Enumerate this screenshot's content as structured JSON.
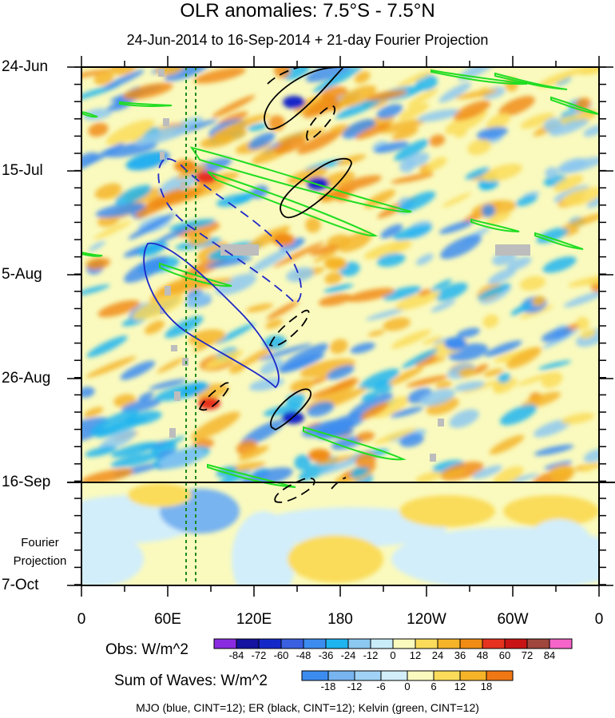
{
  "chart_data": {
    "type": "heatmap",
    "title": "OLR anomalies: 7.5°S - 7.5°N",
    "subtitle": "24-Jun-2014 to 16-Sep-2014 + 21-day Fourier Projection",
    "x_axis": {
      "ticks": [
        "0",
        "60E",
        "120E",
        "180",
        "120W",
        "60W",
        "0"
      ],
      "range_deg_east": [
        0,
        360
      ]
    },
    "y_axis": {
      "ticks": [
        "24-Jun",
        "15-Jul",
        "5-Aug",
        "26-Aug",
        "16-Sep",
        "7-Oct"
      ],
      "direction": "time increases downward"
    },
    "projection_label": [
      "Fourier",
      "Projection"
    ],
    "reference_lines": {
      "vertical_dotted_lon_deg_east": [
        72,
        79
      ],
      "horizontal_solid_date": "16-Sep"
    },
    "obs_colorbar": {
      "title": "Obs: W/m^2",
      "levels": [
        "-84",
        "-72",
        "-60",
        "-48",
        "-36",
        "-24",
        "-12",
        "0",
        "12",
        "24",
        "36",
        "48",
        "60",
        "72",
        "84"
      ],
      "colors": [
        "#8a2be2",
        "#1414a0",
        "#1428c8",
        "#3a5fe0",
        "#3c8cf0",
        "#1eb4f0",
        "#8cc8f0",
        "#c8ecf8",
        "#fafabe",
        "#fadc5a",
        "#f5b428",
        "#f08c14",
        "#e6321e",
        "#c81414",
        "#a0463c",
        "#f564c8"
      ]
    },
    "waves_colorbar": {
      "title": "Sum of Waves: W/m^2",
      "levels": [
        "-18",
        "-12",
        "-6",
        "0",
        "6",
        "12",
        "18"
      ],
      "colors": [
        "#3c8cf0",
        "#78b4f0",
        "#a0d2f5",
        "#d2eefa",
        "#fafabe",
        "#fadc5a",
        "#f5b428",
        "#f07814"
      ]
    },
    "footer": "MJO (blue, CINT=12); ER (black, CINT=12); Kelvin (green, CINT=12)",
    "contours": {
      "mjo_color": "#1e28c8",
      "er_color": "#000000",
      "kelvin_color": "#22dd22"
    }
  }
}
